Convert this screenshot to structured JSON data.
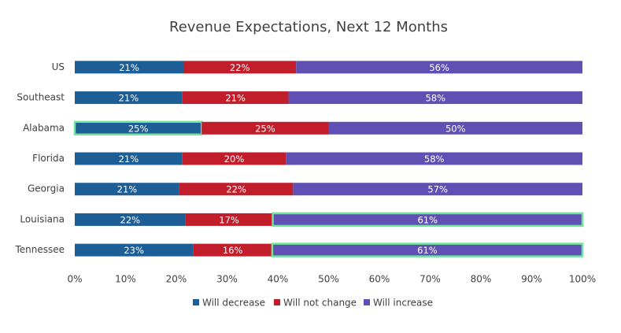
{
  "chart_data": {
    "type": "stacked-bar-horizontal",
    "title": "Revenue Expectations, Next 12 Months",
    "categories": [
      "US",
      "Southeast",
      "Alabama",
      "Florida",
      "Georgia",
      "Louisiana",
      "Tennessee"
    ],
    "series": [
      {
        "name": "Will decrease",
        "color": "#1e5e97",
        "values": [
          21.4,
          21.2,
          25,
          21.2,
          20.6,
          21.8,
          23.3
        ],
        "value_labels": [
          "21%",
          "21%",
          "25%",
          "21%",
          "21%",
          "22%",
          "23%"
        ]
      },
      {
        "name": "Will not change",
        "color": "#c21d2a",
        "values": [
          22.2,
          20.9,
          25,
          20.4,
          22.4,
          17.2,
          15.6
        ],
        "value_labels": [
          "22%",
          "21%",
          "25%",
          "20%",
          "22%",
          "17%",
          "16%"
        ]
      },
      {
        "name": "Will increase",
        "color": "#6150b3",
        "values": [
          56.4,
          57.9,
          50,
          58.4,
          57.0,
          61.0,
          61.1
        ],
        "value_labels": [
          "56%",
          "58%",
          "50%",
          "58%",
          "57%",
          "61%",
          "61%"
        ]
      }
    ],
    "xlim": [
      0,
      100
    ],
    "xticks": [
      {
        "value": 0,
        "label": "0%"
      },
      {
        "value": 10,
        "label": "10%"
      },
      {
        "value": 20,
        "label": "20%"
      },
      {
        "value": 30,
        "label": "30%"
      },
      {
        "value": 40,
        "label": "40%"
      },
      {
        "value": 50,
        "label": "50%"
      },
      {
        "value": 60,
        "label": "60%"
      },
      {
        "value": 70,
        "label": "70%"
      },
      {
        "value": 80,
        "label": "80%"
      },
      {
        "value": 90,
        "label": "90%"
      },
      {
        "value": 100,
        "label": "100%"
      }
    ],
    "grid": false,
    "legend": "bottom",
    "highlight_color": "#6ee59a",
    "highlights": [
      {
        "series": 0,
        "category": 2
      },
      {
        "series": 2,
        "category": 5
      },
      {
        "series": 2,
        "category": 6
      }
    ]
  }
}
